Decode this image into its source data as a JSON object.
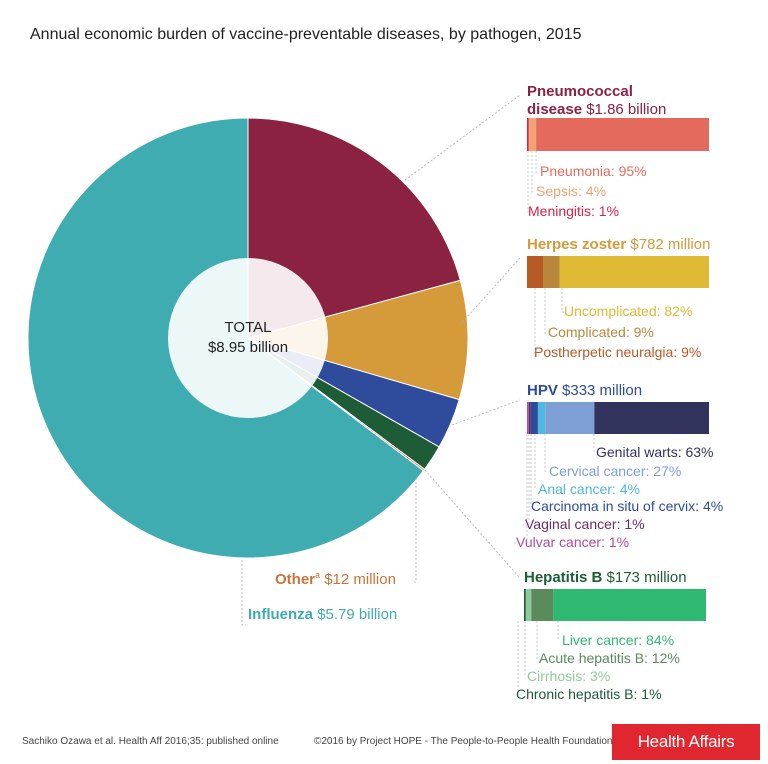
{
  "title": "Annual economic burden of vaccine-preventable diseases, by pathogen, 2015",
  "center": {
    "line1": "TOTAL",
    "line2": "$8.95 billion"
  },
  "colors": {
    "pneumococcal": "#8b2242",
    "herpes": "#d59a3a",
    "hpv": "#2e4b9c",
    "hepb": "#1e5c38",
    "other": "#c8753c",
    "influenza": "#3eacb0"
  },
  "chart_data": [
    {
      "type": "pie",
      "title": "Annual economic burden of vaccine-preventable diseases, by pathogen, 2015",
      "total_label": "TOTAL $8.95 billion",
      "categories": [
        "Pneumococcal disease",
        "Herpes zoster",
        "HPV",
        "Hepatitis B",
        "Other",
        "Influenza"
      ],
      "values": [
        1.86,
        0.782,
        0.333,
        0.173,
        0.012,
        5.79
      ],
      "value_labels": [
        "$1.86 billion",
        "$782 million",
        "$333 million",
        "$173 million",
        "$12 million",
        "$5.79 billion"
      ],
      "unit": "billion USD"
    },
    {
      "type": "bar",
      "name": "Pneumococcal disease",
      "categories": [
        "Meningitis",
        "Sepsis",
        "Pneumonia"
      ],
      "values": [
        1,
        4,
        95
      ],
      "unit": "%"
    },
    {
      "type": "bar",
      "name": "Herpes zoster",
      "categories": [
        "Postherpetic neuralgia",
        "Complicated",
        "Uncomplicated"
      ],
      "values": [
        9,
        9,
        82
      ],
      "unit": "%"
    },
    {
      "type": "bar",
      "name": "HPV",
      "categories": [
        "Vulvar cancer",
        "Vaginal cancer",
        "Carcinoma in situ of cervix",
        "Anal cancer",
        "Cervical cancer",
        "Genital warts"
      ],
      "values": [
        1,
        1,
        4,
        4,
        27,
        63
      ],
      "unit": "%"
    },
    {
      "type": "bar",
      "name": "Hepatitis B",
      "categories": [
        "Chronic hepatitis B",
        "Cirrhosis",
        "Acute hepatitis B",
        "Liver cancer"
      ],
      "values": [
        1,
        3,
        12,
        84
      ],
      "unit": "%"
    }
  ],
  "blocks": [
    {
      "key": "pneumococcal",
      "name": "Pneumococcal\ndisease",
      "name_line1": "Pneumococcal",
      "name_line2": "disease",
      "amount": "$1.86 billion",
      "title_color": "#8b2242",
      "segments": [
        {
          "label": "Meningitis: 1%",
          "value": 1,
          "color": "#d8234a"
        },
        {
          "label": "Sepsis: 4%",
          "value": 4,
          "color": "#f2a374"
        },
        {
          "label": "Pneumonia: 95%",
          "value": 95,
          "color": "#e56a5e"
        }
      ]
    },
    {
      "key": "herpes",
      "name": "Herpes zoster",
      "amount": "$782 million",
      "title_color": "#d59a3a",
      "segments": [
        {
          "label": "Postherpetic neuralgia: 9%",
          "value": 9,
          "color": "#b85a26"
        },
        {
          "label": "Complicated: 9%",
          "value": 9,
          "color": "#b9873c"
        },
        {
          "label": "Uncomplicated: 82%",
          "value": 82,
          "color": "#e0b935"
        }
      ]
    },
    {
      "key": "hpv",
      "name": "HPV",
      "amount": "$333 million",
      "title_color": "#2e4b9c",
      "segments": [
        {
          "label": "Vulvar cancer: 1%",
          "value": 1,
          "color": "#b24da0"
        },
        {
          "label": "Vaginal cancer: 1%",
          "value": 1,
          "color": "#6a2a6a"
        },
        {
          "label": "Carcinoma in situ of cervix: 4%",
          "value": 4,
          "color": "#2e4b9c"
        },
        {
          "label": "Anal cancer: 4%",
          "value": 4,
          "color": "#4fb7e0"
        },
        {
          "label": "Cervical cancer: 27%",
          "value": 27,
          "color": "#7e9fd6"
        },
        {
          "label": "Genital warts: 63%",
          "value": 63,
          "color": "#33345e"
        }
      ]
    },
    {
      "key": "hepb",
      "name": "Hepatitis B",
      "amount": "$173 million",
      "title_color": "#1e5c38",
      "segments": [
        {
          "label": "Chronic hepatitis B: 1%",
          "value": 1,
          "color": "#1e5c38"
        },
        {
          "label": "Cirrhosis: 3%",
          "value": 3,
          "color": "#8fcb9a"
        },
        {
          "label": "Acute hepatitis B: 12%",
          "value": 12,
          "color": "#5b8a5c"
        },
        {
          "label": "Liver cancer: 84%",
          "value": 84,
          "color": "#2fb870"
        }
      ]
    }
  ],
  "pie_labels": {
    "other_name": "Other",
    "other_sup": "a",
    "other_amount": "$12 million",
    "other_color": "#c8753c",
    "influenza_name": "Influenza",
    "influenza_amount": "$5.79 billion",
    "influenza_color": "#3eacb0"
  },
  "footer": {
    "left": "Sachiko Ozawa et al. Health Aff 2016;35: published online",
    "right": "©2016 by Project HOPE - The People-to-People Health Foundation, Inc.",
    "logo": "Health Affairs"
  }
}
